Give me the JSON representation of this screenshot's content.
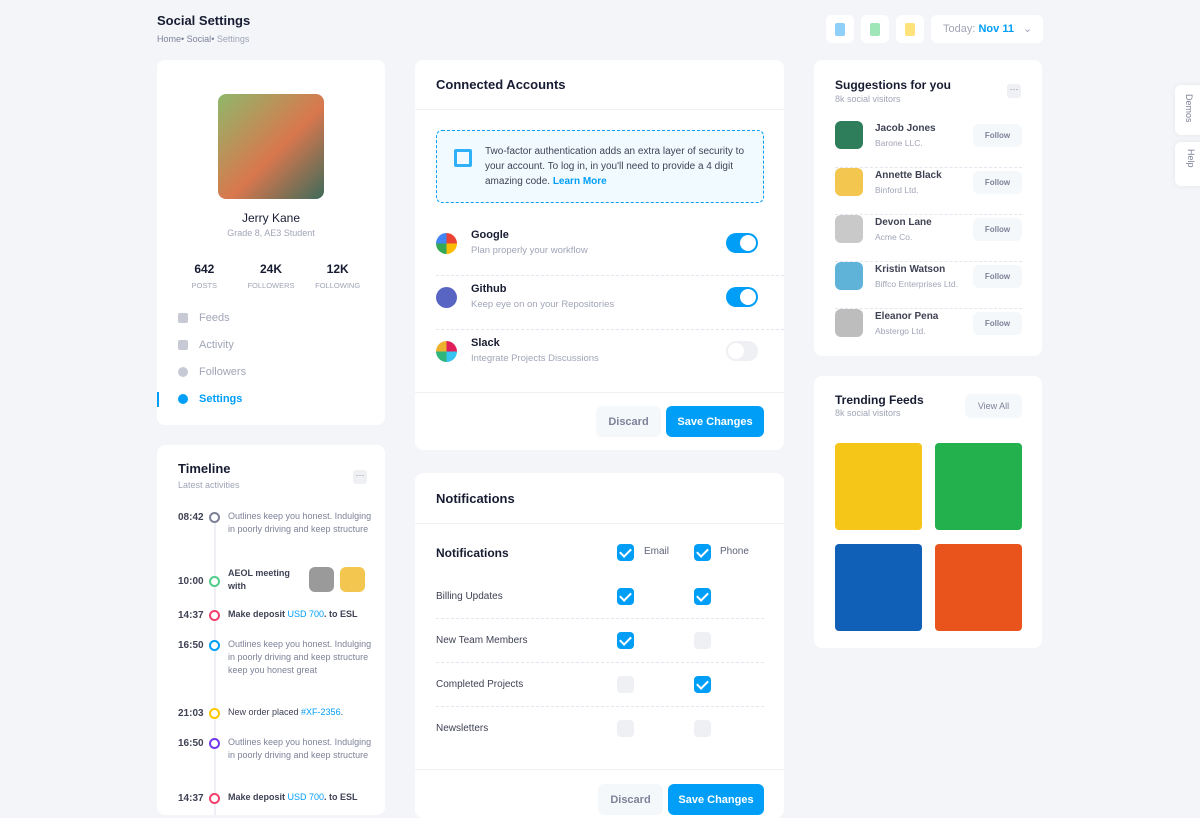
{
  "header": {
    "title": "Social Settings",
    "breadcrumb": [
      "Home",
      "Social",
      "Settings"
    ],
    "today_label": "Today:",
    "today_value": "Nov 11"
  },
  "profile": {
    "name": "Jerry Kane",
    "subtitle": "Grade 8, AE3 Student",
    "stats": [
      {
        "value": "642",
        "label": "POSTS"
      },
      {
        "value": "24K",
        "label": "FOLLOWERS"
      },
      {
        "value": "12K",
        "label": "FOLLOWING"
      }
    ],
    "nav": [
      {
        "label": "Feeds",
        "icon": "feeds-icon"
      },
      {
        "label": "Activity",
        "icon": "chart-icon"
      },
      {
        "label": "Followers",
        "icon": "user-icon"
      },
      {
        "label": "Settings",
        "icon": "gear-icon",
        "active": true
      }
    ]
  },
  "timeline": {
    "title": "Timeline",
    "subtitle": "Latest activities",
    "items": [
      {
        "time": "08:42",
        "color": "#7e8299",
        "text": "Outlines keep you honest. Indulging in poorly driving and keep structure",
        "muted": true
      },
      {
        "time": "10:00",
        "color": "#50cd89",
        "text": "AEOL meeting with",
        "bold": true,
        "avatars": true
      },
      {
        "time": "14:37",
        "color": "#f1416c",
        "text": "Make deposit ",
        "link": "USD 700",
        "after": ". to ESL",
        "bold": true
      },
      {
        "time": "16:50",
        "color": "#009ef7",
        "text": "Outlines keep you honest. Indulging in poorly driving and keep structure keep you honest great",
        "muted": true
      },
      {
        "time": "21:03",
        "color": "#ffc700",
        "text": "New order placed ",
        "link": "#XF-2356",
        "after": "."
      },
      {
        "time": "16:50",
        "color": "#7239ea",
        "text": "Outlines keep you honest. Indulging in poorly driving and keep structure",
        "muted": true
      },
      {
        "time": "14:37",
        "color": "#f1416c",
        "text": "Make deposit ",
        "link": "USD 700",
        "after": ". to ESL",
        "bold": true
      }
    ]
  },
  "connected": {
    "title": "Connected Accounts",
    "notice": "Two-factor authentication adds an extra layer of security to your account. To log in, in you'll need to provide a 4 digit amazing code.",
    "notice_link": "Learn More",
    "accounts": [
      {
        "name": "Google",
        "desc": "Plan properly your workflow",
        "on": true,
        "icon": "google-icon"
      },
      {
        "name": "Github",
        "desc": "Keep eye on on your Repositories",
        "on": true,
        "icon": "github-icon"
      },
      {
        "name": "Slack",
        "desc": "Integrate Projects Discussions",
        "on": false,
        "icon": "slack-icon"
      }
    ],
    "discard": "Discard",
    "save": "Save Changes"
  },
  "notifications": {
    "title": "Notifications",
    "header": "Notifications",
    "email": "Email",
    "phone": "Phone",
    "email_checked": true,
    "phone_checked": true,
    "rows": [
      {
        "label": "Billing Updates",
        "email": true,
        "phone": true
      },
      {
        "label": "New Team Members",
        "email": true,
        "phone": false
      },
      {
        "label": "Completed Projects",
        "email": false,
        "phone": true
      },
      {
        "label": "Newsletters",
        "email": false,
        "phone": false
      }
    ],
    "discard": "Discard",
    "save": "Save Changes"
  },
  "suggestions": {
    "title": "Suggestions for you",
    "subtitle": "8k social visitors",
    "follow": "Follow",
    "people": [
      {
        "name": "Jacob Jones",
        "company": "Barone LLC.",
        "color": "#2e7d5b"
      },
      {
        "name": "Annette Black",
        "company": "Binford Ltd.",
        "color": "#f3c64f"
      },
      {
        "name": "Devon Lane",
        "company": "Acme Co.",
        "color": "#c9c9c9"
      },
      {
        "name": "Kristin Watson",
        "company": "Biffco Enterprises Ltd.",
        "color": "#5fb3d9"
      },
      {
        "name": "Eleanor Pena",
        "company": "Abstergo Ltd.",
        "color": "#bdbdbd"
      }
    ]
  },
  "trending": {
    "title": "Trending Feeds",
    "subtitle": "8k social visitors",
    "view_all": "View All",
    "tiles": [
      "#f5c518",
      "#22b14c",
      "#1060b8",
      "#e8541c"
    ]
  },
  "side": {
    "demos": "Demos",
    "help": "Help"
  },
  "colors": {
    "accent": "#009ef7",
    "bg": "#f3f5f9"
  }
}
